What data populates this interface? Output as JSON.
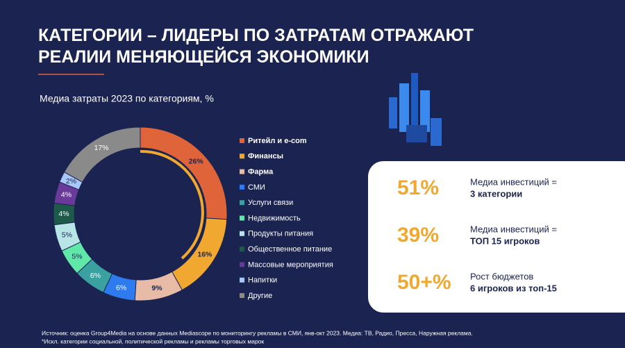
{
  "chart_data": {
    "type": "donut",
    "title": "КАТЕГОРИИ – ЛИДЕРЫ ПО ЗАТРАТАМ ОТРАЖАЮТ РЕАЛИИ МЕНЯЮЩЕЙСЯ ЭКОНОМИКИ",
    "subtitle": "Медиа затраты 2023 по категориям, %",
    "categories": [
      "Ритейл и e-com",
      "Финансы",
      "Фарма",
      "СМИ",
      "Услуги связи",
      "Недвижимость",
      "Продукты питания",
      "Общественное питание",
      "Массовые мероприятия",
      "Напитки",
      "Другие"
    ],
    "values": [
      26,
      16,
      9,
      6,
      6,
      5,
      5,
      4,
      4,
      2,
      17
    ],
    "value_labels": [
      "26%",
      "16%",
      "9%",
      "6%",
      "6%",
      "5%",
      "5%",
      "4%",
      "4%",
      "2%",
      "17%"
    ],
    "colors": [
      "#e0643a",
      "#f0a830",
      "#e8bba6",
      "#2e7bf0",
      "#3aa0a0",
      "#5fe8a8",
      "#b8e6e6",
      "#1e5a4a",
      "#6a3a9a",
      "#a8c8f8",
      "#8a8a8a"
    ]
  },
  "stats": [
    {
      "figure": "51%",
      "label": "Медиа инвестиций =",
      "detail": "3 категории"
    },
    {
      "figure": "39%",
      "label": "Медиа инвестиций =",
      "detail": "ТОП 15 игроков"
    },
    {
      "figure": "50+%",
      "label": "Рост бюджетов",
      "detail": "6 игроков из топ-15"
    }
  ],
  "footer": [
    "Источник: оценка Group4Media на основе данных Mediascope по мониторингу рекламы в СМИ, янв-окт 2023. Медиа: ТВ, Радио, Пресса, Наружная реклама.",
    "*Искл. категории социальной, политической рекламы и рекламы торговых марок"
  ]
}
